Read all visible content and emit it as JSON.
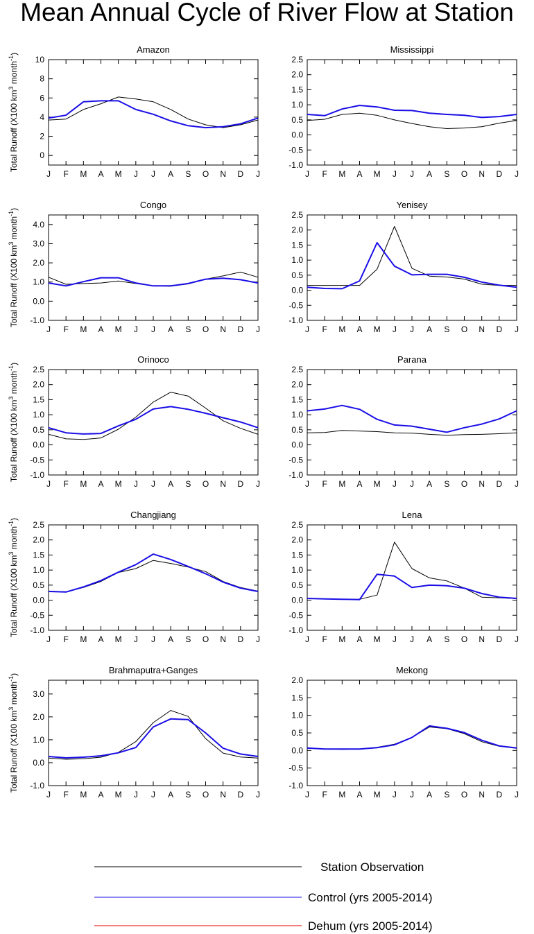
{
  "figure": {
    "title": "Mean Annual Cycle of River Flow at Station",
    "ylabel_main": "Total Runoff (X100 km",
    "ylabel_sup1": "3",
    "ylabel_mid": " month",
    "ylabel_sup2": "-1",
    "ylabel_end": ")"
  },
  "legend": [
    {
      "label": "Station Observation",
      "color": "#000000"
    },
    {
      "label": "Control (yrs 2005-2014)",
      "color": "#1a0ee6"
    },
    {
      "label": "Dehum (yrs 2005-2014)",
      "color": "#e60000"
    }
  ],
  "chart_data": [
    {
      "type": "line",
      "title": "Amazon",
      "ylabel": "Total Runoff (X100 km3 month-1)",
      "ylim": [
        -1,
        10
      ],
      "yticks": [
        0,
        2,
        4,
        6,
        8,
        10
      ],
      "yticklabels": [
        "0",
        "2",
        "4",
        "6",
        "8",
        "10"
      ],
      "categories": [
        "J",
        "F",
        "M",
        "A",
        "M",
        "J",
        "J",
        "A",
        "S",
        "O",
        "N",
        "D",
        "J"
      ],
      "series": [
        {
          "name": "Station Observation",
          "values": [
            3.7,
            3.8,
            4.8,
            5.4,
            6.1,
            5.9,
            5.6,
            4.8,
            3.8,
            3.2,
            2.9,
            3.2,
            3.7
          ]
        },
        {
          "name": "Control (yrs 2005-2014)",
          "values": [
            3.9,
            4.2,
            5.6,
            5.7,
            5.7,
            4.8,
            4.3,
            3.6,
            3.1,
            2.9,
            3.0,
            3.3,
            3.9
          ]
        },
        {
          "name": "Dehum (yrs 2005-2014)",
          "values": [
            3.9,
            4.2,
            5.6,
            5.7,
            5.7,
            4.8,
            4.3,
            3.6,
            3.1,
            2.9,
            3.0,
            3.3,
            3.9
          ]
        }
      ]
    },
    {
      "type": "line",
      "title": "Mississippi",
      "ylabel": "",
      "ylim": [
        -1,
        2.5
      ],
      "yticks": [
        -1,
        -0.5,
        0,
        0.5,
        1,
        1.5,
        2,
        2.5
      ],
      "yticklabels": [
        "-1.0",
        "-0.5",
        "0.0",
        "0.5",
        "1.0",
        "1.5",
        "2.0",
        "2.5"
      ],
      "categories": [
        "J",
        "F",
        "M",
        "A",
        "M",
        "J",
        "J",
        "A",
        "S",
        "O",
        "N",
        "D",
        "J"
      ],
      "series": [
        {
          "name": "Station Observation",
          "values": [
            0.48,
            0.52,
            0.68,
            0.72,
            0.65,
            0.5,
            0.38,
            0.27,
            0.21,
            0.23,
            0.27,
            0.39,
            0.48
          ]
        },
        {
          "name": "Control (yrs 2005-2014)",
          "values": [
            0.68,
            0.64,
            0.86,
            0.98,
            0.93,
            0.82,
            0.81,
            0.72,
            0.68,
            0.65,
            0.58,
            0.61,
            0.68
          ]
        },
        {
          "name": "Dehum (yrs 2005-2014)",
          "values": [
            0.68,
            0.64,
            0.86,
            0.98,
            0.93,
            0.82,
            0.81,
            0.72,
            0.68,
            0.65,
            0.58,
            0.61,
            0.68
          ]
        }
      ]
    },
    {
      "type": "line",
      "title": "Congo",
      "ylabel": "Total Runoff (X100 km3 month-1)",
      "ylim": [
        -1,
        4.5
      ],
      "yticks": [
        -1,
        0,
        1,
        2,
        3,
        4
      ],
      "yticklabels": [
        "-1.0",
        "0.0",
        "1.0",
        "2.0",
        "3.0",
        "4.0"
      ],
      "categories": [
        "J",
        "F",
        "M",
        "A",
        "M",
        "J",
        "J",
        "A",
        "S",
        "O",
        "N",
        "D",
        "J"
      ],
      "series": [
        {
          "name": "Station Observation",
          "values": [
            1.25,
            0.88,
            0.92,
            0.95,
            1.05,
            0.92,
            0.8,
            0.78,
            0.9,
            1.15,
            1.32,
            1.52,
            1.25
          ]
        },
        {
          "name": "Control (yrs 2005-2014)",
          "values": [
            0.95,
            0.8,
            1.02,
            1.22,
            1.22,
            0.95,
            0.8,
            0.8,
            0.92,
            1.15,
            1.2,
            1.12,
            0.95
          ]
        },
        {
          "name": "Dehum (yrs 2005-2014)",
          "values": [
            0.95,
            0.8,
            1.02,
            1.22,
            1.22,
            0.95,
            0.8,
            0.8,
            0.92,
            1.15,
            1.2,
            1.12,
            0.95
          ]
        }
      ]
    },
    {
      "type": "line",
      "title": "Yenisey",
      "ylabel": "",
      "ylim": [
        -1,
        2.5
      ],
      "yticks": [
        -1,
        -0.5,
        0,
        0.5,
        1,
        1.5,
        2,
        2.5
      ],
      "yticklabels": [
        "-1.0",
        "-0.5",
        "0.0",
        "0.5",
        "1.0",
        "1.5",
        "2.0",
        "2.5"
      ],
      "categories": [
        "J",
        "F",
        "M",
        "A",
        "M",
        "J",
        "J",
        "A",
        "S",
        "O",
        "N",
        "D",
        "J"
      ],
      "series": [
        {
          "name": "Station Observation",
          "values": [
            0.16,
            0.16,
            0.16,
            0.16,
            0.7,
            2.12,
            0.73,
            0.47,
            0.44,
            0.37,
            0.2,
            0.16,
            0.16
          ]
        },
        {
          "name": "Control (yrs 2005-2014)",
          "values": [
            0.1,
            0.06,
            0.05,
            0.31,
            1.58,
            0.8,
            0.51,
            0.53,
            0.53,
            0.43,
            0.27,
            0.17,
            0.1
          ]
        },
        {
          "name": "Dehum (yrs 2005-2014)",
          "values": [
            0.1,
            0.06,
            0.05,
            0.31,
            1.58,
            0.8,
            0.51,
            0.53,
            0.53,
            0.43,
            0.27,
            0.17,
            0.1
          ]
        }
      ]
    },
    {
      "type": "line",
      "title": "Orinoco",
      "ylabel": "Total Runoff (X100 km3 month-1)",
      "ylim": [
        -1,
        2.5
      ],
      "yticks": [
        -1,
        -0.5,
        0,
        0.5,
        1,
        1.5,
        2,
        2.5
      ],
      "yticklabels": [
        "-1.0",
        "-0.5",
        "0.0",
        "0.5",
        "1.0",
        "1.5",
        "2.0",
        "2.5"
      ],
      "categories": [
        "J",
        "F",
        "M",
        "A",
        "M",
        "J",
        "J",
        "A",
        "S",
        "O",
        "N",
        "D",
        "J"
      ],
      "series": [
        {
          "name": "Station Observation",
          "values": [
            0.35,
            0.2,
            0.18,
            0.23,
            0.52,
            0.92,
            1.42,
            1.75,
            1.62,
            1.22,
            0.8,
            0.55,
            0.35
          ]
        },
        {
          "name": "Control (yrs 2005-2014)",
          "values": [
            0.57,
            0.4,
            0.36,
            0.38,
            0.63,
            0.85,
            1.19,
            1.27,
            1.18,
            1.05,
            0.9,
            0.76,
            0.57
          ]
        },
        {
          "name": "Dehum (yrs 2005-2014)",
          "values": [
            0.57,
            0.4,
            0.36,
            0.38,
            0.63,
            0.85,
            1.19,
            1.27,
            1.18,
            1.05,
            0.9,
            0.76,
            0.57
          ]
        }
      ]
    },
    {
      "type": "line",
      "title": "Parana",
      "ylabel": "",
      "ylim": [
        -1,
        2.5
      ],
      "yticks": [
        -1,
        -0.5,
        0,
        0.5,
        1,
        1.5,
        2,
        2.5
      ],
      "yticklabels": [
        "-1.0",
        "-0.5",
        "0.0",
        "0.5",
        "1.0",
        "1.5",
        "2.0",
        "2.5"
      ],
      "categories": [
        "J",
        "F",
        "M",
        "A",
        "M",
        "J",
        "J",
        "A",
        "S",
        "O",
        "N",
        "D",
        "J"
      ],
      "series": [
        {
          "name": "Station Observation",
          "values": [
            0.4,
            0.41,
            0.48,
            0.46,
            0.44,
            0.4,
            0.39,
            0.35,
            0.32,
            0.34,
            0.35,
            0.37,
            0.4
          ]
        },
        {
          "name": "Control (yrs 2005-2014)",
          "values": [
            1.13,
            1.19,
            1.31,
            1.18,
            0.85,
            0.66,
            0.62,
            0.52,
            0.42,
            0.57,
            0.69,
            0.86,
            1.13
          ]
        },
        {
          "name": "Dehum (yrs 2005-2014)",
          "values": [
            1.13,
            1.19,
            1.31,
            1.18,
            0.85,
            0.66,
            0.62,
            0.52,
            0.42,
            0.57,
            0.69,
            0.86,
            1.13
          ]
        }
      ]
    },
    {
      "type": "line",
      "title": "Changjiang",
      "ylabel": "Total Runoff (X100 km3 month-1)",
      "ylim": [
        -1,
        2.5
      ],
      "yticks": [
        -1,
        -0.5,
        0,
        0.5,
        1,
        1.5,
        2,
        2.5
      ],
      "yticklabels": [
        "-1.0",
        "-0.5",
        "0.0",
        "0.5",
        "1.0",
        "1.5",
        "2.0",
        "2.5"
      ],
      "categories": [
        "J",
        "F",
        "M",
        "A",
        "M",
        "J",
        "J",
        "A",
        "S",
        "O",
        "N",
        "D",
        "J"
      ],
      "series": [
        {
          "name": "Station Observation",
          "values": [
            0.3,
            0.28,
            0.42,
            0.62,
            0.92,
            1.05,
            1.32,
            1.22,
            1.1,
            0.95,
            0.62,
            0.42,
            0.3
          ]
        },
        {
          "name": "Control (yrs 2005-2014)",
          "values": [
            0.29,
            0.27,
            0.44,
            0.65,
            0.93,
            1.18,
            1.53,
            1.35,
            1.12,
            0.88,
            0.6,
            0.4,
            0.29
          ]
        },
        {
          "name": "Dehum (yrs 2005-2014)",
          "values": [
            0.29,
            0.27,
            0.44,
            0.65,
            0.93,
            1.18,
            1.53,
            1.35,
            1.12,
            0.88,
            0.6,
            0.4,
            0.29
          ]
        }
      ]
    },
    {
      "type": "line",
      "title": "Lena",
      "ylabel": "",
      "ylim": [
        -1,
        2.5
      ],
      "yticks": [
        -1,
        -0.5,
        0,
        0.5,
        1,
        1.5,
        2,
        2.5
      ],
      "yticklabels": [
        "-1.0",
        "-0.5",
        "0.0",
        "0.5",
        "1.0",
        "1.5",
        "2.0",
        "2.5"
      ],
      "categories": [
        "J",
        "F",
        "M",
        "A",
        "M",
        "J",
        "J",
        "A",
        "S",
        "O",
        "N",
        "D",
        "J"
      ],
      "series": [
        {
          "name": "Station Observation",
          "values": [
            0.05,
            0.04,
            0.03,
            0.03,
            0.17,
            1.93,
            1.05,
            0.74,
            0.64,
            0.4,
            0.1,
            0.08,
            0.05
          ]
        },
        {
          "name": "Control (yrs 2005-2014)",
          "values": [
            0.06,
            0.04,
            0.03,
            0.02,
            0.86,
            0.8,
            0.42,
            0.5,
            0.48,
            0.4,
            0.22,
            0.1,
            0.06
          ]
        },
        {
          "name": "Dehum (yrs 2005-2014)",
          "values": [
            0.06,
            0.04,
            0.03,
            0.02,
            0.86,
            0.8,
            0.42,
            0.5,
            0.48,
            0.4,
            0.22,
            0.1,
            0.06
          ]
        }
      ]
    },
    {
      "type": "line",
      "title": "Brahmaputra+Ganges",
      "ylabel": "Total Runoff (X100 km3 month-1)",
      "ylim": [
        -1,
        3.6
      ],
      "yticks": [
        -1,
        0,
        1,
        2,
        3
      ],
      "yticklabels": [
        "-1.0",
        "0.0",
        "1.0",
        "2.0",
        "3.0"
      ],
      "categories": [
        "J",
        "F",
        "M",
        "A",
        "M",
        "J",
        "J",
        "A",
        "S",
        "O",
        "N",
        "D",
        "J"
      ],
      "series": [
        {
          "name": "Station Observation",
          "values": [
            0.2,
            0.15,
            0.17,
            0.24,
            0.45,
            0.92,
            1.75,
            2.28,
            2.02,
            1.05,
            0.42,
            0.25,
            0.2
          ]
        },
        {
          "name": "Control (yrs 2005-2014)",
          "values": [
            0.27,
            0.21,
            0.24,
            0.3,
            0.43,
            0.66,
            1.56,
            1.91,
            1.88,
            1.3,
            0.63,
            0.38,
            0.27
          ]
        },
        {
          "name": "Dehum (yrs 2005-2014)",
          "values": [
            0.27,
            0.21,
            0.24,
            0.3,
            0.43,
            0.66,
            1.56,
            1.91,
            1.88,
            1.3,
            0.63,
            0.38,
            0.27
          ]
        }
      ]
    },
    {
      "type": "line",
      "title": "Mekong",
      "ylabel": "",
      "ylim": [
        -1,
        2
      ],
      "yticks": [
        -1,
        -0.5,
        0,
        0.5,
        1,
        1.5,
        2
      ],
      "yticklabels": [
        "-1.0",
        "-0.5",
        "0.0",
        "0.5",
        "1.0",
        "1.5",
        "2.0"
      ],
      "categories": [
        "J",
        "F",
        "M",
        "A",
        "M",
        "J",
        "J",
        "A",
        "S",
        "O",
        "N",
        "D",
        "J"
      ],
      "series": [
        {
          "name": "Station Observation",
          "values": [
            0.06,
            0.04,
            0.03,
            0.04,
            0.09,
            0.18,
            0.37,
            0.67,
            0.62,
            0.48,
            0.25,
            0.12,
            0.06
          ]
        },
        {
          "name": "Control (yrs 2005-2014)",
          "values": [
            0.07,
            0.04,
            0.04,
            0.04,
            0.08,
            0.16,
            0.37,
            0.7,
            0.63,
            0.51,
            0.29,
            0.13,
            0.07
          ]
        },
        {
          "name": "Dehum (yrs 2005-2014)",
          "values": [
            0.07,
            0.04,
            0.04,
            0.04,
            0.08,
            0.16,
            0.37,
            0.7,
            0.63,
            0.51,
            0.29,
            0.13,
            0.07
          ]
        }
      ]
    }
  ]
}
